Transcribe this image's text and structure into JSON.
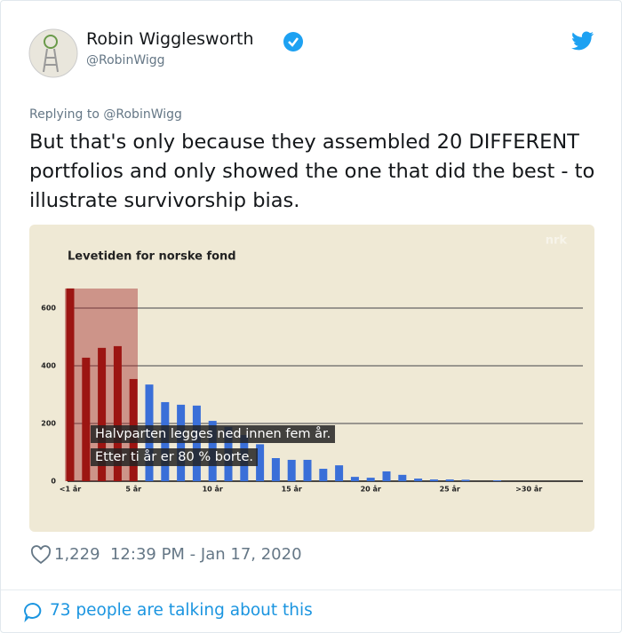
{
  "tweet": {
    "name": "Robin Wigglesworth",
    "handle": "@RobinWigg",
    "reply_prefix": "Replying to",
    "reply_handle": "@RobinWigg",
    "text": "But that's only because they assembled 20 DIFFERENT portfolios and only showed the one that did the best - to illustrate survivorship bias.",
    "likes": "1,229",
    "timestamp": "12:39 PM - Jan 17, 2020",
    "footer": "73 people are talking about this"
  },
  "chart_data": {
    "type": "bar",
    "title": "Levetiden for norske fond",
    "watermark": "nrk",
    "subtitles": [
      "Halvparten legges ned innen fem år.",
      "Etter ti år er 80 % borte."
    ],
    "categories": [
      "<1 år",
      null,
      null,
      null,
      "5 år",
      null,
      null,
      null,
      null,
      "10 år",
      null,
      null,
      null,
      null,
      "15 år",
      null,
      null,
      null,
      null,
      "20 år",
      null,
      null,
      null,
      null,
      "25 år",
      null,
      null,
      null,
      null,
      ">30 år",
      null
    ],
    "values": [
      668,
      428,
      462,
      468,
      354,
      335,
      274,
      265,
      262,
      209,
      188,
      160,
      128,
      80,
      74,
      74,
      43,
      55,
      15,
      12,
      34,
      22,
      9,
      6,
      6,
      5,
      0,
      3,
      0,
      0,
      0
    ],
    "colors": [
      "#9c1512",
      "#9c1512",
      "#9c1512",
      "#9c1512",
      "#9c1512",
      "#3a6fd8",
      "#3a6fd8",
      "#3a6fd8",
      "#3a6fd8",
      "#3a6fd8",
      "#3a6fd8",
      "#3a6fd8",
      "#3a6fd8",
      "#3a6fd8",
      "#3a6fd8",
      "#3a6fd8",
      "#3a6fd8",
      "#3a6fd8",
      "#3a6fd8",
      "#3a6fd8",
      "#3a6fd8",
      "#3a6fd8",
      "#3a6fd8",
      "#3a6fd8",
      "#3a6fd8",
      "#3a6fd8",
      "#3a6fd8",
      "#3a6fd8",
      "#3a6fd8",
      "#3a6fd8",
      "#3a6fd8"
    ],
    "ylim": [
      0,
      700
    ],
    "yticks": [
      0,
      200,
      400,
      600
    ],
    "grid": true
  }
}
